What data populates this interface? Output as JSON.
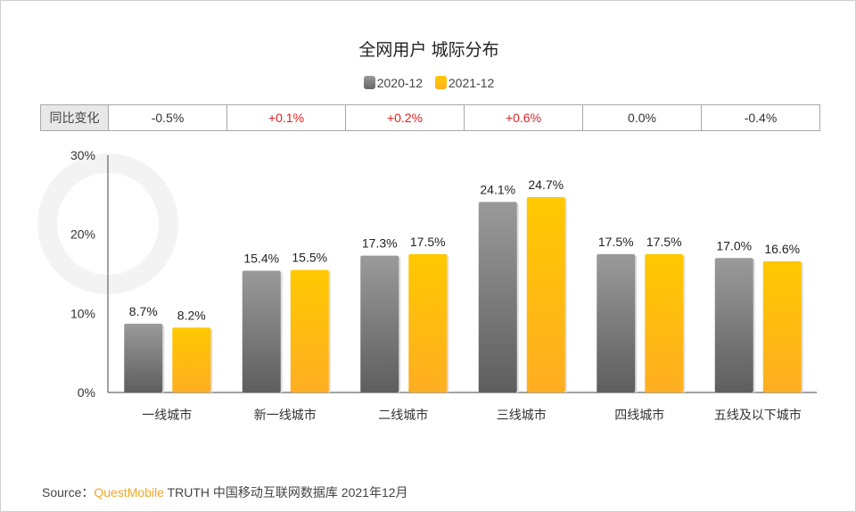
{
  "chart_data": {
    "type": "bar",
    "title": "全网用户 城际分布",
    "categories": [
      "一线城市",
      "新一线城市",
      "二线城市",
      "三线城市",
      "四线城市",
      "五线及以下城市"
    ],
    "series": [
      {
        "name": "2020-12",
        "values": [
          8.7,
          15.4,
          17.3,
          24.1,
          17.5,
          17.0
        ],
        "labels": [
          "8.7%",
          "15.4%",
          "17.3%",
          "24.1%",
          "17.5%",
          "17.0%"
        ],
        "color": "#7a7a7a"
      },
      {
        "name": "2021-12",
        "values": [
          8.2,
          15.5,
          17.5,
          24.7,
          17.5,
          16.6
        ],
        "labels": [
          "8.2%",
          "15.5%",
          "17.5%",
          "24.7%",
          "17.5%",
          "16.6%"
        ],
        "color": "#ffc000"
      }
    ],
    "ylim": [
      0,
      30
    ],
    "yticks": [
      "0%",
      "10%",
      "20%",
      "30%"
    ],
    "legend": "top-center",
    "grid": false
  },
  "yoy": {
    "label": "同比变化",
    "values": [
      "-0.5%",
      "+0.1%",
      "+0.2%",
      "+0.6%",
      "0.0%",
      "-0.4%"
    ],
    "positive_color": "#e02020",
    "neutral_color": "#333333"
  },
  "watermark": "QUESTMOBILE",
  "source": {
    "prefix": "Source：",
    "brand": "QuestMobile",
    "rest": " TRUTH 中国移动互联网数据库 2021年12月"
  }
}
